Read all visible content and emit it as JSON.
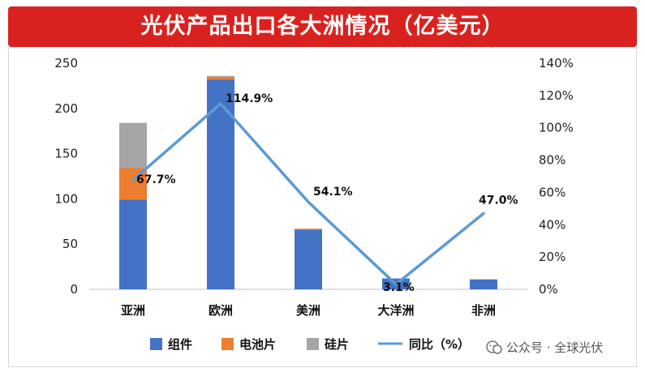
{
  "title": "光伏产品出口各大洲情况（亿美元）",
  "watermark": "公众号 · 全球光伏",
  "colors": {
    "banner": "#d9221f",
    "component": "#4472c4",
    "cell": "#ed7d31",
    "wafer": "#a5a5a5",
    "yoy": "#5b9bd5"
  },
  "chart_data": {
    "type": "bar",
    "stacked": true,
    "title": "光伏产品出口各大洲情况（亿美元）",
    "categories": [
      "亚洲",
      "欧洲",
      "美洲",
      "大洋洲",
      "非洲"
    ],
    "series": [
      {
        "name": "组件",
        "color": "#4472c4",
        "values": [
          99,
          232,
          66,
          12,
          11
        ]
      },
      {
        "name": "电池片",
        "color": "#ed7d31",
        "values": [
          35,
          3,
          1,
          0,
          0
        ]
      },
      {
        "name": "硅片",
        "color": "#a5a5a5",
        "values": [
          50,
          1,
          0,
          0,
          0
        ]
      }
    ],
    "line_series": {
      "name": "同比（%）",
      "color": "#5b9bd5",
      "axis": "right",
      "values": [
        67.7,
        114.9,
        54.1,
        3.1,
        47.0
      ],
      "labels": [
        "67.7%",
        "114.9%",
        "54.1%",
        "3.1%",
        "47.0%"
      ]
    },
    "y_left": {
      "min": 0,
      "max": 250,
      "ticks": [
        "0",
        "50",
        "100",
        "150",
        "200",
        "250"
      ]
    },
    "y_right": {
      "min": 0,
      "max": 140,
      "ticks": [
        "0%",
        "20%",
        "40%",
        "60%",
        "80%",
        "100%",
        "120%",
        "140%"
      ]
    },
    "grid": false,
    "legend_position": "bottom"
  }
}
